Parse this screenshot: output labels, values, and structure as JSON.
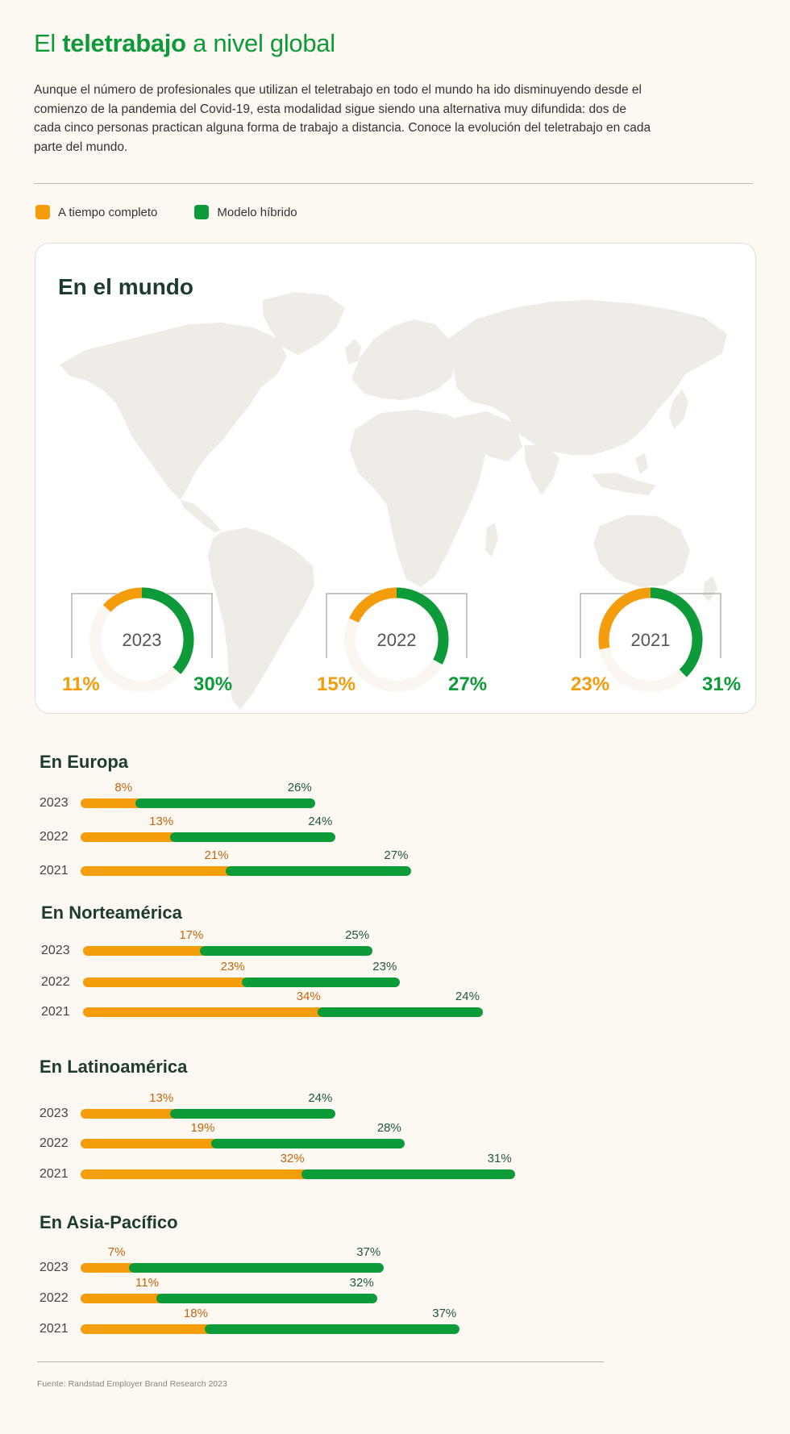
{
  "header": {
    "title_pre": "El ",
    "title_bold": "teletrabajo",
    "title_post": " a nivel global",
    "intro": "Aunque el número de profesionales que utilizan el teletrabajo en todo el mundo ha ido disminuyendo desde el comienzo de la pandemia del Covid-19, esta modalidad sigue siendo una alternativa muy difundida: dos de cada cinco personas practican alguna forma de trabajo a distancia. Conoce la evolución del teletrabajo en cada parte del mundo."
  },
  "legend": {
    "full_time": "A tiempo completo",
    "hybrid": "Modelo híbrido"
  },
  "colors": {
    "full_time": "#f39c0c",
    "hybrid": "#0d9a38",
    "full_time_text": "#c2650d",
    "hybrid_text": "#1d5a3a",
    "map": "#efebe7"
  },
  "world": {
    "title": "En el mundo"
  },
  "chart_data": [
    {
      "type": "pie",
      "title": "En el mundo",
      "categories": [
        "2023",
        "2022",
        "2021"
      ],
      "series": [
        {
          "name": "A tiempo completo",
          "values": [
            11,
            15,
            23
          ],
          "labels": [
            "11%",
            "15%",
            "23%"
          ]
        },
        {
          "name": "Modelo híbrido",
          "values": [
            30,
            27,
            31
          ],
          "labels": [
            "30%",
            "27%",
            "31%"
          ]
        }
      ]
    },
    {
      "type": "bar",
      "title": "En Europa",
      "categories": [
        "2023",
        "2022",
        "2021"
      ],
      "series": [
        {
          "name": "A tiempo completo",
          "values": [
            8,
            13,
            21
          ],
          "labels": [
            "8%",
            "13%",
            "21%"
          ]
        },
        {
          "name": "Modelo híbrido",
          "values": [
            26,
            24,
            27
          ],
          "labels": [
            "26%",
            "24%",
            "27%"
          ]
        }
      ]
    },
    {
      "type": "bar",
      "title": "En Norteamérica",
      "categories": [
        "2023",
        "2022",
        "2021"
      ],
      "series": [
        {
          "name": "A tiempo completo",
          "values": [
            17,
            23,
            34
          ],
          "labels": [
            "17%",
            "23%",
            "34%"
          ]
        },
        {
          "name": "Modelo híbrido",
          "values": [
            25,
            23,
            24
          ],
          "labels": [
            "25%",
            "23%",
            "24%"
          ]
        }
      ]
    },
    {
      "type": "bar",
      "title": "En Latinoamérica",
      "categories": [
        "2023",
        "2022",
        "2021"
      ],
      "series": [
        {
          "name": "A tiempo completo",
          "values": [
            13,
            19,
            32
          ],
          "labels": [
            "13%",
            "19%",
            "32%"
          ]
        },
        {
          "name": "Modelo híbrido",
          "values": [
            24,
            28,
            31
          ],
          "labels": [
            "24%",
            "28%",
            "31%"
          ]
        }
      ]
    },
    {
      "type": "bar",
      "title": "En Asia-Pacífico",
      "categories": [
        "2023",
        "2022",
        "2021"
      ],
      "series": [
        {
          "name": "A tiempo completo",
          "values": [
            7,
            11,
            18
          ],
          "labels": [
            "7%",
            "11%",
            "18%"
          ]
        },
        {
          "name": "Modelo híbrido",
          "values": [
            37,
            32,
            37
          ],
          "labels": [
            "37%",
            "32%",
            "37%"
          ]
        }
      ]
    }
  ],
  "footer": {
    "source": "Fuente: Randstad Employer Brand Research 2023"
  }
}
